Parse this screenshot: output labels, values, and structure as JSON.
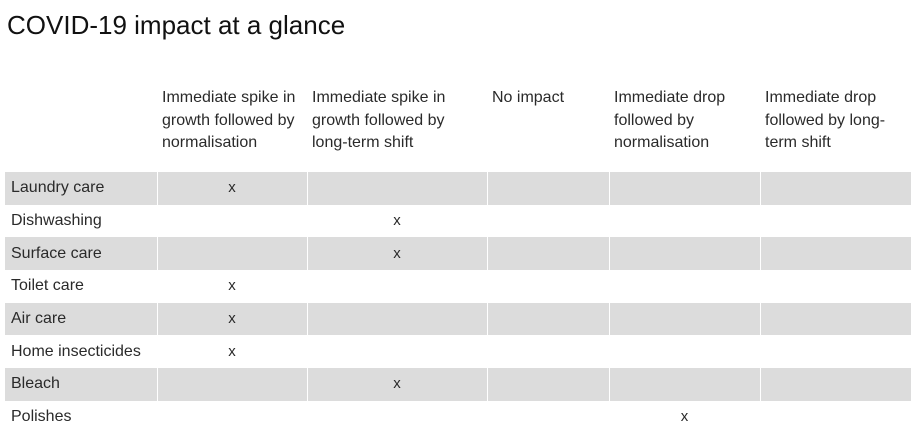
{
  "title": "COVID-19 impact at a glance",
  "table": {
    "headers": [
      "",
      "Immediate spike in growth followed by normalisation",
      "Immediate spike in growth followed by long-term shift",
      "No impact",
      "Immediate drop followed by normalisation",
      "Immediate drop followed by long-term shift"
    ],
    "rows": [
      {
        "label": "Laundry care",
        "cells": [
          "x",
          "",
          "",
          "",
          ""
        ]
      },
      {
        "label": "Dishwashing",
        "cells": [
          "",
          "x",
          "",
          "",
          ""
        ]
      },
      {
        "label": "Surface care",
        "cells": [
          "",
          "x",
          "",
          "",
          ""
        ]
      },
      {
        "label": "Toilet care",
        "cells": [
          "x",
          "",
          "",
          "",
          ""
        ]
      },
      {
        "label": "Air care",
        "cells": [
          "x",
          "",
          "",
          "",
          ""
        ]
      },
      {
        "label": "Home insecticides",
        "cells": [
          "x",
          "",
          "",
          "",
          ""
        ]
      },
      {
        "label": "Bleach",
        "cells": [
          "",
          "x",
          "",
          "",
          ""
        ]
      },
      {
        "label": "Polishes",
        "cells": [
          "",
          "",
          "",
          "x",
          ""
        ]
      }
    ]
  },
  "colors": {
    "shaded_row": "#dcdcdc",
    "background": "#ffffff"
  }
}
